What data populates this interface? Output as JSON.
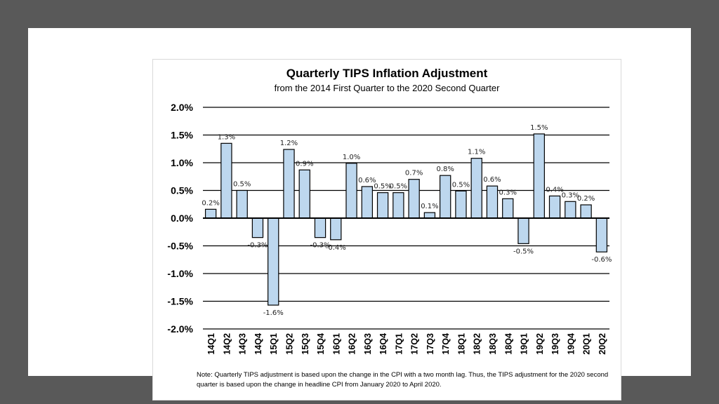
{
  "chart_data": {
    "type": "bar",
    "title": "Quarterly TIPS Inflation Adjustment",
    "subtitle": "from the 2014 First Quarter to the 2020 Second Quarter",
    "xlabel": "",
    "ylabel": "",
    "ylim": [
      -2.0,
      2.0
    ],
    "yticks": [
      2.0,
      1.5,
      1.0,
      0.5,
      0.0,
      -0.5,
      -1.0,
      -1.5,
      -2.0
    ],
    "ytick_labels": [
      "2.0%",
      "1.5%",
      "1.0%",
      "0.5%",
      "0.0%",
      "-0.5%",
      "-1.0%",
      "-1.5%",
      "-2.0%"
    ],
    "grid": true,
    "legend": "none",
    "bar_color": "#bdd7ee",
    "bar_edge_color": "#000000",
    "categories": [
      "14Q1",
      "14Q2",
      "14Q3",
      "14Q4",
      "15Q1",
      "15Q2",
      "15Q3",
      "15Q4",
      "16Q1",
      "16Q2",
      "16Q3",
      "16Q4",
      "17Q1",
      "17Q2",
      "17Q3",
      "17Q4",
      "18Q1",
      "18Q2",
      "18Q3",
      "18Q4",
      "19Q1",
      "19Q2",
      "19Q3",
      "19Q4",
      "20Q1",
      "20Q2"
    ],
    "values": [
      0.16,
      1.35,
      0.5,
      -0.35,
      -1.57,
      1.24,
      0.87,
      -0.35,
      -0.39,
      0.99,
      0.57,
      0.46,
      0.46,
      0.7,
      0.1,
      0.77,
      0.49,
      1.08,
      0.58,
      0.35,
      -0.46,
      1.52,
      0.4,
      0.3,
      0.24,
      -0.61
    ],
    "data_labels": [
      "0.2%",
      "1.3%",
      "0.5%",
      "-0.3%",
      "-1.6%",
      "1.2%",
      "0.9%",
      "-0.3%",
      "-0.4%",
      "1.0%",
      "0.6%",
      "0.5%",
      "0.5%",
      "0.7%",
      "0.1%",
      "0.8%",
      "0.5%",
      "1.1%",
      "0.6%",
      "0.3%",
      "-0.5%",
      "1.5%",
      "0.4%",
      "0.3%",
      "0.2%",
      "-0.6%"
    ],
    "note": "Note:  Quarterly TIPS adjustment is based upon the change in the CPI with a two month lag.  Thus, the TIPS adjustment for the 2020 second quarter is based upon the change in headline CPI from January 2020 to April 2020."
  },
  "colors": {
    "frame": "#595959",
    "slide": "#ffffff"
  }
}
